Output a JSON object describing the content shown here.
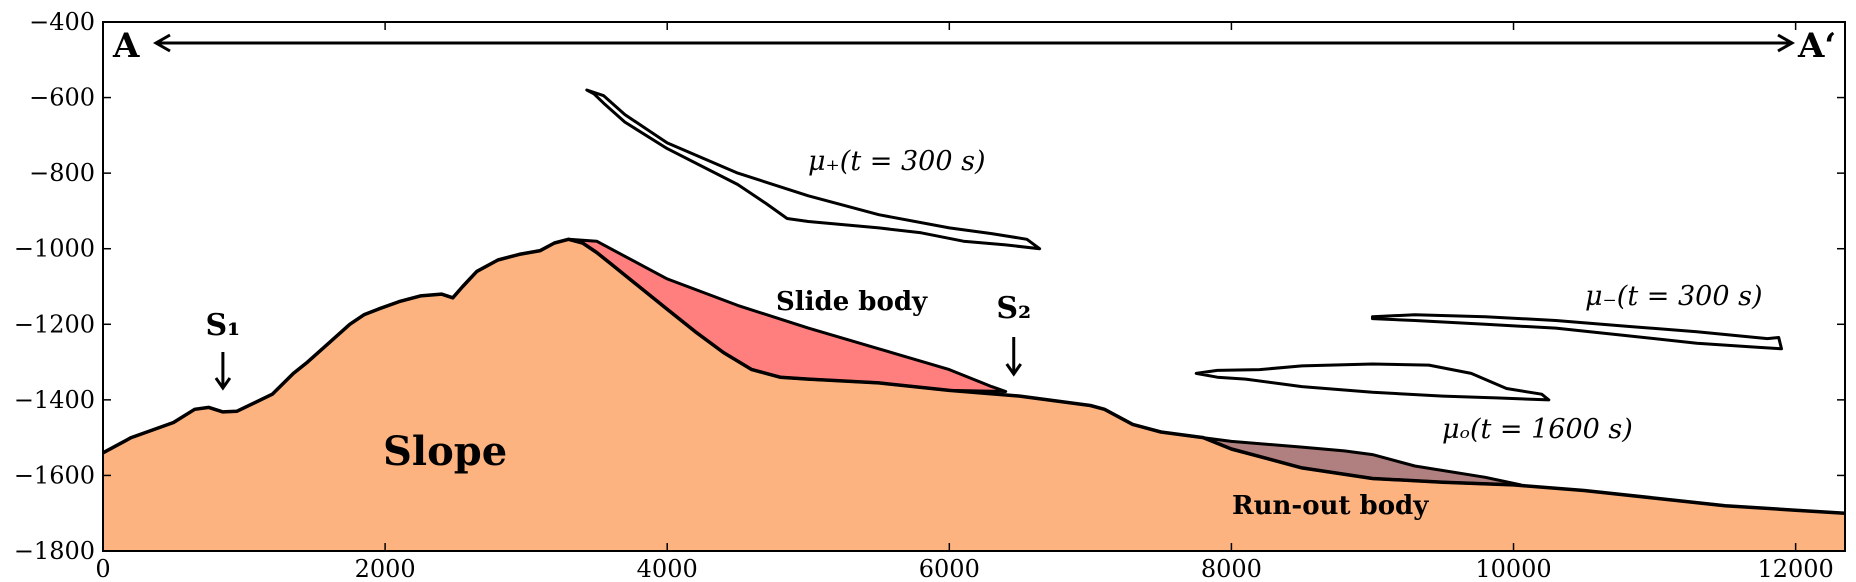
{
  "chart_data": {
    "type": "area",
    "xlim": [
      0,
      12350
    ],
    "ylim": [
      -1800,
      -400
    ],
    "xticks": [
      0,
      2000,
      4000,
      6000,
      8000,
      10000,
      12000
    ],
    "yticks": [
      -1800,
      -1600,
      -1400,
      -1200,
      -1000,
      -800,
      -600,
      -400
    ],
    "xtick_labels": [
      "0",
      "2000",
      "4000",
      "6000",
      "8000",
      "10000",
      "12000"
    ],
    "ytick_labels": [
      "−1800",
      "−1600",
      "−1400",
      "−1200",
      "−1000",
      "−800",
      "−600",
      "−400"
    ],
    "colors": {
      "slope": "#FDB380",
      "slide": "#FF7F7F",
      "runout": "#B07F7F",
      "line": "#000000"
    },
    "series": [
      {
        "name": "Slope",
        "values": [
          [
            0,
            -1540
          ],
          [
            200,
            -1500
          ],
          [
            500,
            -1460
          ],
          [
            650,
            -1425
          ],
          [
            750,
            -1420
          ],
          [
            850,
            -1432
          ],
          [
            950,
            -1430
          ],
          [
            1050,
            -1412
          ],
          [
            1200,
            -1385
          ],
          [
            1350,
            -1330
          ],
          [
            1450,
            -1300
          ],
          [
            1600,
            -1250
          ],
          [
            1750,
            -1200
          ],
          [
            1850,
            -1175
          ],
          [
            1950,
            -1160
          ],
          [
            2100,
            -1140
          ],
          [
            2250,
            -1125
          ],
          [
            2400,
            -1120
          ],
          [
            2480,
            -1130
          ],
          [
            2550,
            -1100
          ],
          [
            2650,
            -1060
          ],
          [
            2800,
            -1030
          ],
          [
            2950,
            -1015
          ],
          [
            3100,
            -1005
          ],
          [
            3200,
            -985
          ],
          [
            3300,
            -975
          ],
          [
            3400,
            -985
          ],
          [
            3500,
            -1010
          ],
          [
            3600,
            -1040
          ],
          [
            3800,
            -1100
          ],
          [
            4000,
            -1160
          ],
          [
            4200,
            -1220
          ],
          [
            4400,
            -1275
          ],
          [
            4600,
            -1320
          ],
          [
            4800,
            -1340
          ],
          [
            5000,
            -1345
          ],
          [
            5500,
            -1355
          ],
          [
            6000,
            -1375
          ],
          [
            6500,
            -1390
          ],
          [
            7000,
            -1415
          ],
          [
            7100,
            -1425
          ],
          [
            7300,
            -1465
          ],
          [
            7500,
            -1485
          ],
          [
            7800,
            -1500
          ],
          [
            8000,
            -1530
          ],
          [
            8500,
            -1580
          ],
          [
            9000,
            -1608
          ],
          [
            9500,
            -1618
          ],
          [
            10000,
            -1625
          ],
          [
            10500,
            -1640
          ],
          [
            11000,
            -1660
          ],
          [
            11500,
            -1680
          ],
          [
            12000,
            -1692
          ],
          [
            12350,
            -1700
          ]
        ]
      },
      {
        "name": "Slide body",
        "values": [
          [
            3300,
            -975
          ],
          [
            3500,
            -980
          ],
          [
            3700,
            -1020
          ],
          [
            4000,
            -1080
          ],
          [
            4500,
            -1150
          ],
          [
            5000,
            -1210
          ],
          [
            5500,
            -1265
          ],
          [
            6000,
            -1320
          ],
          [
            6300,
            -1365
          ],
          [
            6400,
            -1378
          ]
        ]
      },
      {
        "name": "Run-out body",
        "values": [
          [
            7700,
            -1495
          ],
          [
            8000,
            -1510
          ],
          [
            8500,
            -1525
          ],
          [
            8800,
            -1535
          ],
          [
            9000,
            -1545
          ],
          [
            9300,
            -1575
          ],
          [
            9800,
            -1605
          ],
          [
            10050,
            -1625
          ]
        ]
      },
      {
        "name": "μ+(t = 300 s)",
        "values": [
          [
            3430,
            -580
          ],
          [
            3550,
            -595
          ],
          [
            3700,
            -645
          ],
          [
            4000,
            -720
          ],
          [
            4500,
            -800
          ],
          [
            5000,
            -860
          ],
          [
            5500,
            -910
          ],
          [
            6000,
            -945
          ],
          [
            6300,
            -960
          ],
          [
            6550,
            -975
          ],
          [
            6640,
            -1000
          ],
          [
            6400,
            -990
          ],
          [
            6100,
            -980
          ],
          [
            5800,
            -958
          ],
          [
            5500,
            -945
          ],
          [
            5000,
            -928
          ],
          [
            4850,
            -920
          ],
          [
            4700,
            -880
          ],
          [
            4500,
            -830
          ],
          [
            4000,
            -735
          ],
          [
            3700,
            -665
          ],
          [
            3550,
            -615
          ],
          [
            3480,
            -590
          ],
          [
            3430,
            -580
          ]
        ]
      },
      {
        "name": "μ−(t = 300 s)",
        "values": [
          [
            9000,
            -1180
          ],
          [
            9300,
            -1175
          ],
          [
            9800,
            -1180
          ],
          [
            10300,
            -1190
          ],
          [
            10800,
            -1205
          ],
          [
            11300,
            -1220
          ],
          [
            11800,
            -1238
          ],
          [
            11880,
            -1235
          ],
          [
            11900,
            -1265
          ],
          [
            11700,
            -1260
          ],
          [
            11300,
            -1250
          ],
          [
            10800,
            -1230
          ],
          [
            10300,
            -1210
          ],
          [
            9800,
            -1200
          ],
          [
            9300,
            -1190
          ],
          [
            9000,
            -1185
          ]
        ]
      },
      {
        "name": "μo(t = 1600 s)",
        "values": [
          [
            7750,
            -1330
          ],
          [
            7900,
            -1322
          ],
          [
            8200,
            -1320
          ],
          [
            8500,
            -1310
          ],
          [
            9000,
            -1305
          ],
          [
            9400,
            -1308
          ],
          [
            9700,
            -1330
          ],
          [
            9950,
            -1370
          ],
          [
            10200,
            -1385
          ],
          [
            10250,
            -1400
          ],
          [
            9900,
            -1395
          ],
          [
            9500,
            -1390
          ],
          [
            9000,
            -1380
          ],
          [
            8500,
            -1365
          ],
          [
            8100,
            -1345
          ],
          [
            7900,
            -1340
          ],
          [
            7750,
            -1330
          ]
        ]
      }
    ],
    "annotations": {
      "slope_label": "Slope",
      "slide_label": "Slide body",
      "runout_label": "Run-out body",
      "mu_plus_label": "μ₊(t = 300 s)",
      "mu_minus_label": "μ₋(t = 300 s)",
      "mu_o_label": "μₒ(t = 1600 s)",
      "s1_label": "S₁",
      "s2_label": "S₂",
      "a_left": "A",
      "a_right": "A‘",
      "s1_x": 850,
      "s2_x": 6400
    }
  }
}
